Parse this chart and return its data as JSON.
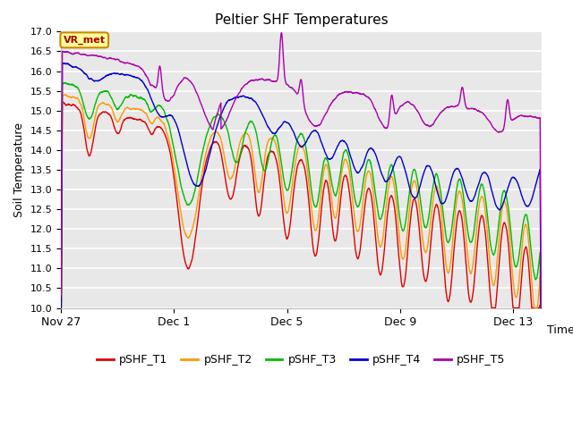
{
  "title": "Peltier SHF Temperatures",
  "ylabel": "Soil Temperature",
  "xlabel": "Time",
  "ylim": [
    10.0,
    17.0
  ],
  "yticks": [
    10.0,
    10.5,
    11.0,
    11.5,
    12.0,
    12.5,
    13.0,
    13.5,
    14.0,
    14.5,
    15.0,
    15.5,
    16.0,
    16.5,
    17.0
  ],
  "line_colors": {
    "pSHF_T1": "#dd0000",
    "pSHF_T2": "#ff9900",
    "pSHF_T3": "#00bb00",
    "pSHF_T4": "#0000cc",
    "pSHF_T5": "#aa00aa"
  },
  "line_width": 1.0,
  "bg_color": "#ffffff",
  "plot_bg_color": "#e8e8e8",
  "grid_color": "#ffffff",
  "vr_met_label": "VR_met",
  "vr_met_bg": "#ffff99",
  "vr_met_border": "#cc8800",
  "legend_labels": [
    "pSHF_T1",
    "pSHF_T2",
    "pSHF_T3",
    "pSHF_T4",
    "pSHF_T5"
  ],
  "xtick_labels": [
    "Nov 27",
    "Dec 1",
    "Dec 5",
    "Dec 9",
    "Dec 13"
  ],
  "xtick_positions_days": [
    0,
    4,
    8,
    12,
    16
  ]
}
